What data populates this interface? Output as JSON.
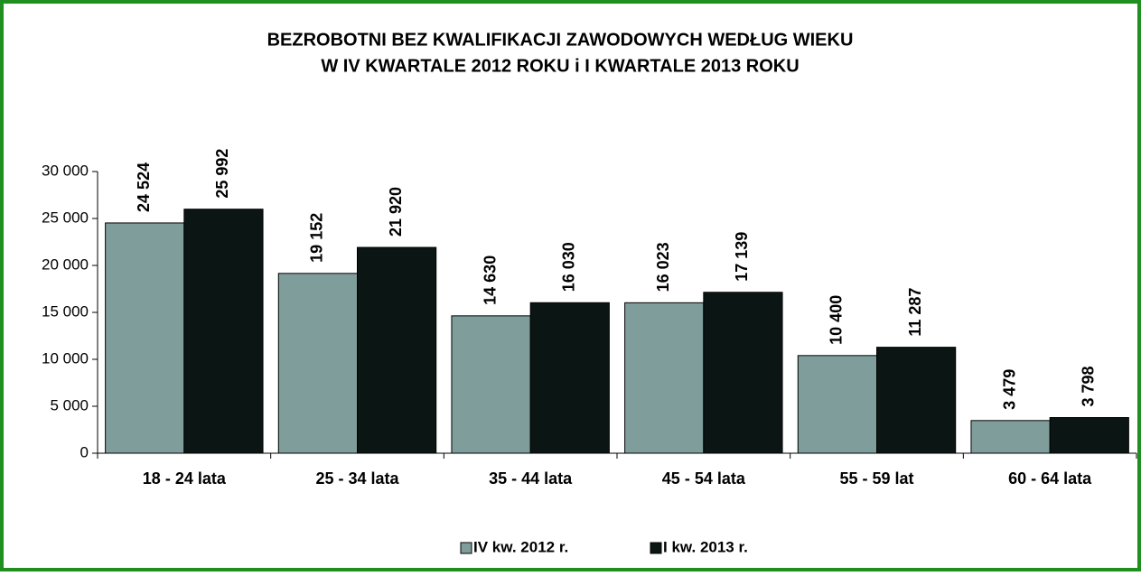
{
  "chart_data": {
    "type": "bar",
    "title": [
      "BEZROBOTNI BEZ KWALIFIKACJI ZAWODOWYCH WEDŁUG  WIEKU",
      "W IV KWARTALE 2012 ROKU i I KWARTALE 2013 ROKU"
    ],
    "categories": [
      "18 - 24 lata",
      "25 - 34 lata",
      "35 - 44 lata",
      "45 - 54 lata",
      "55 - 59 lat",
      "60 - 64 lata"
    ],
    "series": [
      {
        "name": "IV kw. 2012 r.",
        "color": "#7f9e9b",
        "values": [
          24524,
          19152,
          14630,
          16023,
          10400,
          3479
        ],
        "value_labels": [
          "24 524",
          "19 152",
          "14 630",
          "16 023",
          "10 400",
          "3 479"
        ]
      },
      {
        "name": "I kw. 2013 r.",
        "color": "#0b1614",
        "values": [
          25992,
          21920,
          16030,
          17139,
          11287,
          3798
        ],
        "value_labels": [
          "25 992",
          "21 920",
          "16 030",
          "17 139",
          "11 287",
          "3 798"
        ]
      }
    ],
    "ylim": [
      0,
      30000
    ],
    "yticks": [
      0,
      {
        "value": 5000,
        "label": "5 000"
      },
      {
        "value": 10000,
        "label": "10 000"
      },
      {
        "value": 15000,
        "label": "15 000"
      },
      {
        "value": 20000,
        "label": "20 000"
      },
      {
        "value": 25000,
        "label": "25 000"
      },
      {
        "value": 30000,
        "label": "30 000"
      }
    ],
    "grid": false,
    "legend": "bottom"
  }
}
